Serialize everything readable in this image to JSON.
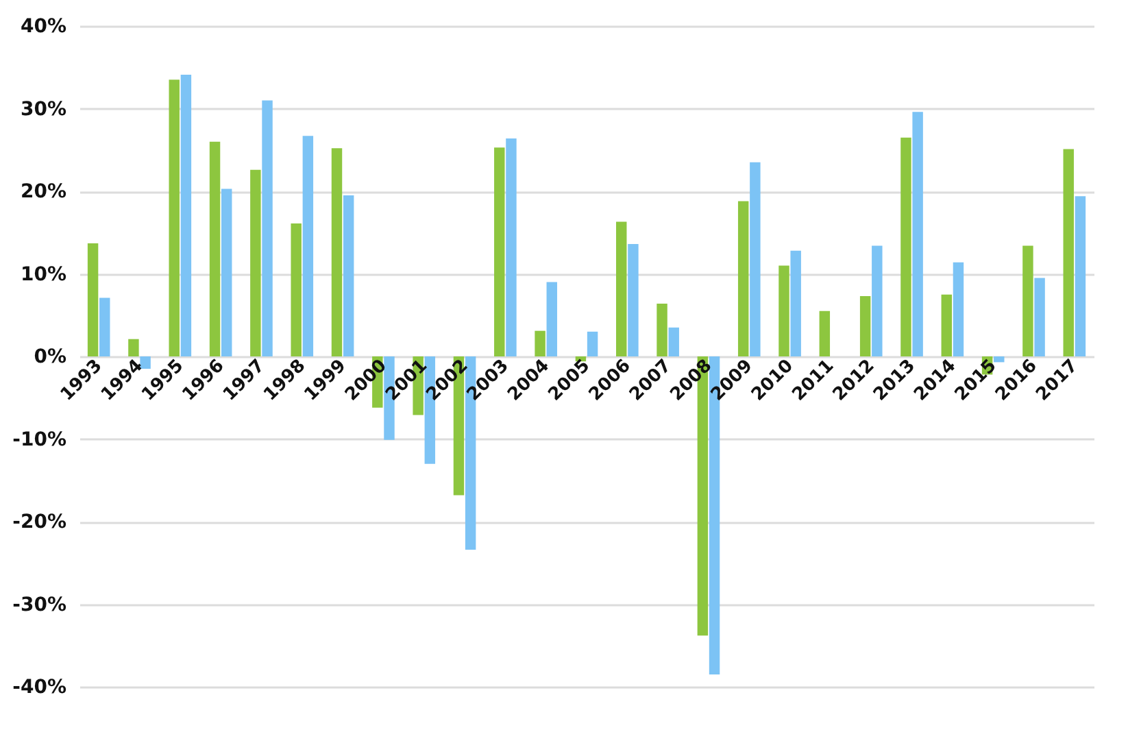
{
  "chart_data": {
    "type": "bar",
    "categories": [
      "1993",
      "1994",
      "1995",
      "1996",
      "1997",
      "1998",
      "1999",
      "2000",
      "2001",
      "2002",
      "2003",
      "2004",
      "2005",
      "2006",
      "2007",
      "2008",
      "2009",
      "2010",
      "2011",
      "2012",
      "2013",
      "2014",
      "2015",
      "2016",
      "2017"
    ],
    "series": [
      {
        "color": "#8dc63f",
        "values": [
          13.7,
          2.1,
          33.5,
          26,
          22.6,
          16.1,
          25.2,
          -6.2,
          -7.1,
          -16.8,
          25.3,
          3.1,
          -0.6,
          16.3,
          6.4,
          -33.8,
          18.8,
          11,
          5.5,
          7.3,
          26.5,
          7.5,
          -2.2,
          13.4,
          25.1
        ]
      },
      {
        "color": "#7cc3f5",
        "values": [
          7.1,
          -1.5,
          34.1,
          20.3,
          31,
          26.7,
          19.5,
          -10.1,
          -13,
          -23.4,
          26.4,
          9,
          3,
          13.6,
          3.5,
          -38.5,
          23.5,
          12.8,
          0,
          13.4,
          29.6,
          11.4,
          -0.7,
          9.5,
          19.4
        ]
      }
    ],
    "ylim": [
      -40,
      40
    ],
    "yticks": [
      {
        "value": -40,
        "label": "-40%"
      },
      {
        "value": -30,
        "label": "-30%"
      },
      {
        "value": -20,
        "label": "-20%"
      },
      {
        "value": -10,
        "label": "-10%"
      },
      {
        "value": 0,
        "label": "0%"
      },
      {
        "value": 10,
        "label": "10%"
      },
      {
        "value": 20,
        "label": "20%"
      },
      {
        "value": 30,
        "label": "30%"
      },
      {
        "value": 40,
        "label": "40%"
      }
    ],
    "grid": "y",
    "legend": false
  }
}
